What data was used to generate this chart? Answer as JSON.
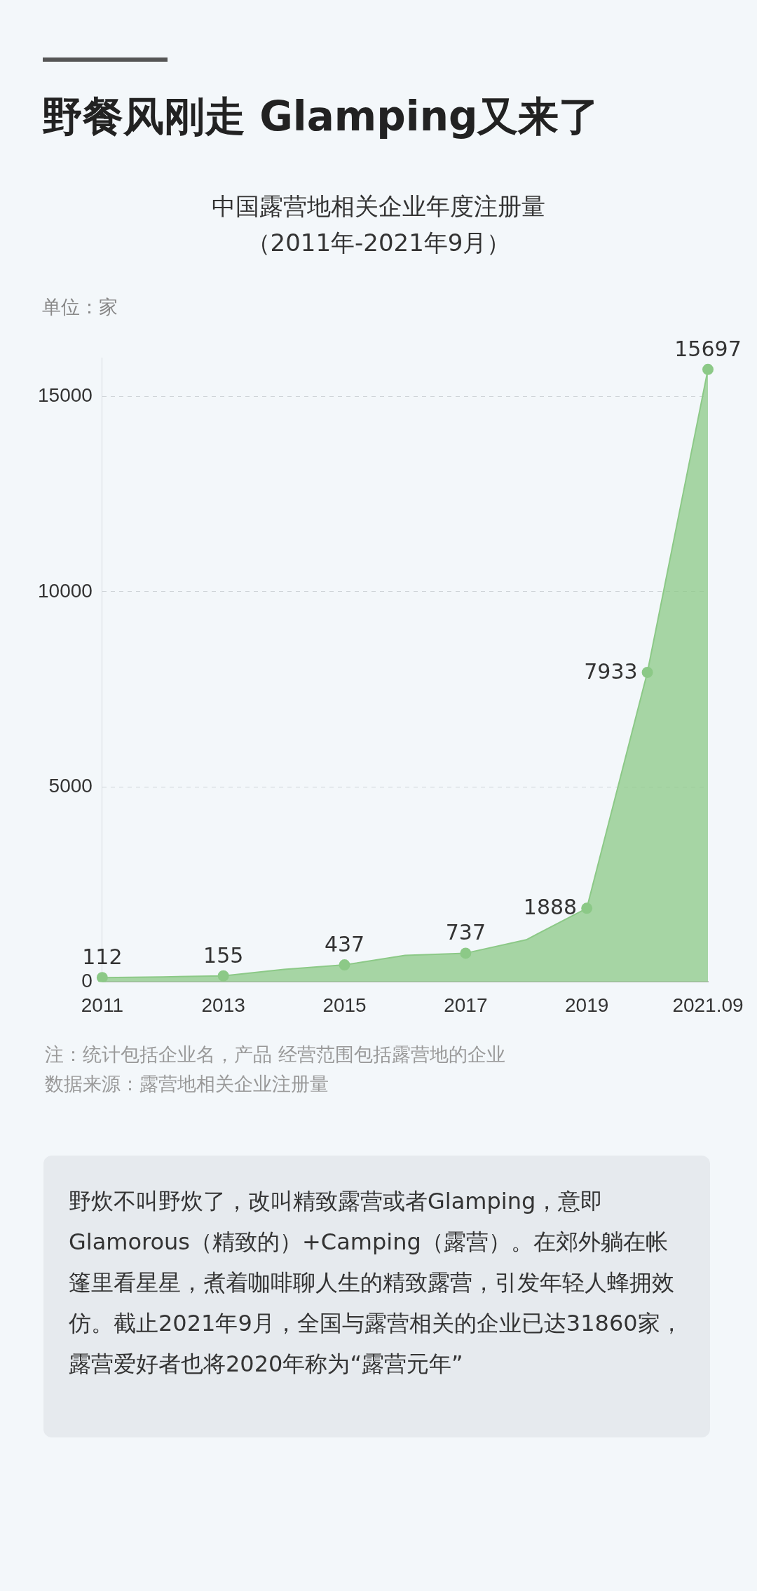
{
  "chart_data": {
    "type": "area",
    "title": "野餐风刚走  Glamping又来了",
    "subtitle": "中国露营地相关企业年度注册量（2011年-2021年9月）",
    "ylabel": "单位：家",
    "categories": [
      "2011",
      null,
      "2013",
      null,
      "2015",
      null,
      "2017",
      null,
      "2019",
      null,
      "2021.09"
    ],
    "series": [
      {
        "color": "#8cc987",
        "values": [
          112,
          130,
          155,
          320,
          437,
          680,
          737,
          1080,
          1888,
          7933,
          15697
        ],
        "value_labels": [
          "112",
          null,
          "155",
          null,
          "437",
          null,
          "737",
          null,
          "1888",
          "7933",
          "15697"
        ]
      }
    ],
    "ylim": [
      0,
      16000
    ],
    "yticks": [
      0,
      5000,
      10000,
      15000
    ],
    "grid": "y",
    "marker": "circle",
    "annotations": [
      "注：统计包括企业名，产品 经营范围包括露营地的企业",
      "数据来源：露营地相关企业注册量",
      "野炊不叫野炊了，改叫精致露营或者Glamping，意即Glamorous（精致的）+Camping（露营）。在郊外躺在帐篷里看星星，煮着咖啡聊人生的精致露营，引发年轻人蜂拥效仿。截止2021年9月，全国与露营相关的企业已达31860家，露营爱好者也将2020年称为“露营元年”"
    ]
  }
}
